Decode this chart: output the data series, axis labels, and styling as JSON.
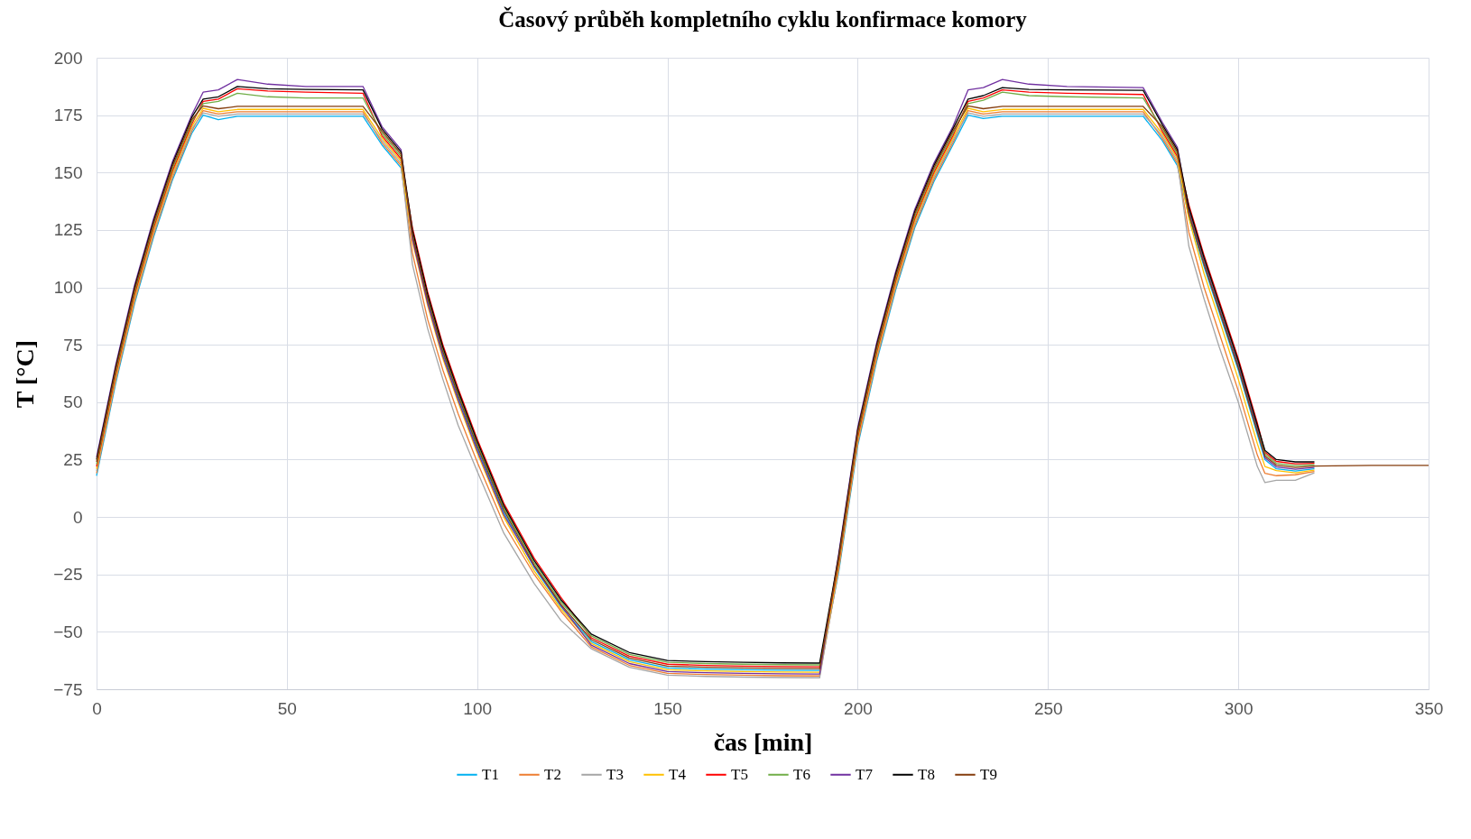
{
  "chart_data": {
    "type": "line",
    "title": "Časový průběh kompletního cyklu konfirmace komory",
    "xlabel": "čas [min]",
    "ylabel": "T [°C]",
    "x": [
      0,
      5,
      10,
      15,
      20,
      25,
      28,
      32,
      37,
      45,
      55,
      70,
      75,
      80,
      83,
      87,
      91,
      95,
      100,
      107,
      115,
      122,
      130,
      140,
      150,
      160,
      170,
      180,
      189,
      190,
      195,
      200,
      205,
      210,
      215,
      220,
      225,
      229,
      233,
      238,
      245,
      255,
      275,
      280,
      284,
      287,
      291,
      295,
      300,
      305,
      307,
      310,
      315,
      320,
      335,
      350
    ],
    "series": [
      {
        "name": "T1",
        "color": "#00b0f0",
        "values": [
          18,
          58,
          93,
          122,
          147,
          167,
          175,
          173,
          174.5,
          174.5,
          174.5,
          174.5,
          162,
          152,
          122,
          94,
          71,
          52,
          30,
          2,
          -22,
          -39,
          -54.2,
          -62.2,
          -65.7,
          -66.2,
          -66.5,
          -66.7,
          -66.8,
          -66.8,
          -24,
          31,
          68,
          99,
          126,
          146,
          162,
          175,
          173.5,
          174.5,
          174.5,
          174.5,
          174.5,
          164,
          153,
          131,
          109,
          89,
          64,
          36,
          25,
          21,
          20,
          21,
          null,
          null
        ]
      },
      {
        "name": "T2",
        "color": "#ed7d31",
        "values": [
          19,
          59,
          94,
          123,
          148,
          168,
          177,
          175.5,
          176.5,
          176.5,
          176.5,
          176.5,
          163,
          153,
          115,
          86,
          64,
          45,
          24,
          -3,
          -25,
          -41,
          -56.6,
          -64.6,
          -68.1,
          -68.6,
          -68.9,
          -69.1,
          -69.2,
          -69.2,
          -23,
          32,
          69,
          100,
          127,
          147,
          163,
          177,
          175.5,
          176.5,
          176.5,
          176.5,
          176.5,
          165,
          154,
          124,
          100,
          80,
          55,
          27,
          19,
          18,
          18.4,
          19.8,
          null,
          null
        ]
      },
      {
        "name": "T3",
        "color": "#a5a5a5",
        "values": [
          20,
          60,
          95,
          124,
          149,
          169,
          176,
          174.5,
          175.5,
          175.5,
          175.5,
          175.5,
          164,
          154,
          110,
          82,
          60,
          40,
          20,
          -7,
          -29,
          -45,
          -57.4,
          -65.4,
          -68.9,
          -69.4,
          -69.7,
          -69.9,
          -70,
          -70,
          -22,
          33,
          70,
          101,
          128,
          148,
          164,
          176,
          174.5,
          175.5,
          175.5,
          175.5,
          175.5,
          166,
          155,
          118,
          95,
          74,
          50,
          22,
          15,
          16,
          16,
          19.2,
          null,
          null
        ]
      },
      {
        "name": "T4",
        "color": "#ffc000",
        "values": [
          21,
          61,
          96,
          125,
          150,
          170,
          178,
          176.5,
          177.5,
          177.5,
          177.5,
          177.5,
          165,
          155,
          120,
          92,
          69,
          50,
          28,
          0,
          -23.5,
          -40,
          -55,
          -63,
          -66.5,
          -67,
          -67.3,
          -67.5,
          -67.6,
          -67.6,
          -21,
          34,
          71,
          102,
          129,
          149,
          165,
          178,
          176.5,
          177.5,
          177.5,
          177.5,
          177.5,
          167,
          156,
          130,
          106,
          86,
          60,
          32,
          22,
          20.2,
          19.2,
          20.4,
          null,
          null
        ]
      },
      {
        "name": "T5",
        "color": "#ff0000",
        "values": [
          22,
          62,
          97,
          126,
          151,
          171,
          181,
          182,
          186.5,
          185.5,
          185,
          184.5,
          166,
          156,
          126,
          98,
          75,
          56,
          34,
          6,
          -18,
          -35,
          -52.6,
          -60.6,
          -64.1,
          -64.6,
          -64.9,
          -65.1,
          -65.2,
          -65.2,
          -20,
          35,
          72,
          103,
          130,
          150,
          166,
          181,
          182.5,
          186,
          185,
          184.5,
          184,
          168,
          157,
          136,
          114,
          94,
          69,
          41,
          28.2,
          24.2,
          23.2,
          23.4,
          null,
          null
        ]
      },
      {
        "name": "T6",
        "color": "#70ad47",
        "values": [
          23,
          63,
          98,
          127,
          152,
          172,
          180,
          181,
          184.5,
          183,
          182.5,
          182.5,
          167,
          157,
          124,
          96,
          73,
          54,
          32,
          4,
          -20,
          -37,
          -51.8,
          -59.8,
          -63.3,
          -63.8,
          -64.1,
          -64.3,
          -64.4,
          -64.4,
          -19,
          36,
          73,
          104,
          131,
          151,
          167,
          180,
          181.5,
          185,
          183.5,
          183,
          182.5,
          169,
          158,
          134,
          112,
          92,
          67,
          39,
          27.4,
          23.4,
          22.4,
          22.8,
          null,
          null
        ]
      },
      {
        "name": "T7",
        "color": "#7030a0",
        "values": [
          26,
          66,
          101,
          130,
          155,
          175,
          185,
          186,
          190.5,
          188.5,
          187.5,
          187.5,
          170,
          160,
          121,
          93,
          70,
          51,
          29,
          1,
          -21.5,
          -38.5,
          -55.8,
          -63.8,
          -67.3,
          -67.8,
          -68.1,
          -68.3,
          -68.4,
          -68.4,
          -16,
          39,
          76,
          107,
          134,
          154,
          170,
          186,
          187,
          190.5,
          188.5,
          187.5,
          187,
          172,
          161,
          133,
          111,
          91,
          66,
          38,
          25.8,
          21.8,
          20.8,
          21.6,
          null,
          null
        ]
      },
      {
        "name": "T8",
        "color": "#000000",
        "values": [
          25,
          65,
          100,
          129,
          154,
          174,
          182,
          183,
          187.5,
          186.5,
          186.2,
          186,
          169,
          159,
          125,
          97,
          74,
          55,
          33,
          5,
          -19,
          -36,
          -51,
          -59,
          -62.5,
          -63,
          -63.3,
          -63.5,
          -63.6,
          -63.6,
          -17,
          38,
          75,
          106,
          133,
          153,
          169,
          182,
          183.5,
          187,
          186.2,
          186,
          185.8,
          171,
          160,
          135,
          113,
          93,
          68,
          40,
          29,
          25,
          24,
          24,
          null,
          null
        ]
      },
      {
        "name": "T9",
        "color": "#843c0c",
        "values": [
          24,
          64,
          99,
          128,
          153,
          173,
          179,
          177.8,
          178.8,
          178.8,
          178.8,
          178.8,
          168,
          158,
          123,
          95,
          72,
          53,
          31,
          3,
          -21,
          -38,
          -53.4,
          -61.4,
          -64.9,
          -65.4,
          -65.7,
          -65.9,
          -66,
          -66,
          -18,
          37,
          74,
          105,
          132,
          152,
          168,
          179,
          177.8,
          178.8,
          178.8,
          178.8,
          178.8,
          170,
          159,
          132,
          110,
          90,
          65,
          37,
          26.6,
          22.6,
          21.6,
          22.2,
          22.5,
          22.5
        ]
      }
    ],
    "xlim": [
      0,
      350
    ],
    "xticks": [
      0,
      50,
      100,
      150,
      200,
      250,
      300,
      350
    ],
    "ylim": [
      -75,
      200
    ],
    "yticks": [
      -75,
      -50,
      -25,
      0,
      25,
      50,
      75,
      100,
      125,
      150,
      175,
      200
    ],
    "grid": true,
    "legend": "bottom"
  }
}
